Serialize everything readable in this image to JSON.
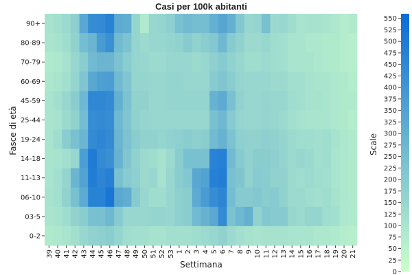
{
  "chart_data": {
    "type": "heatmap",
    "title": "Casi per 100k abitanti",
    "xlabel": "Settimana",
    "ylabel": "Fasce di età",
    "colorbar_label": "Scale",
    "colorbar_range": [
      0,
      560
    ],
    "colorbar_ticks": [
      0,
      25,
      50,
      75,
      100,
      125,
      150,
      175,
      200,
      225,
      250,
      275,
      300,
      325,
      350,
      375,
      400,
      425,
      450,
      475,
      500,
      525,
      550
    ],
    "color_low": "#ccffcc",
    "color_high": "#0a6bd6",
    "x_categories": [
      "39",
      "40",
      "41",
      "42",
      "43",
      "44",
      "45",
      "46",
      "47",
      "48",
      "49",
      "50",
      "51",
      "52",
      "53",
      "1",
      "2",
      "3",
      "4",
      "5",
      "6",
      "7",
      "8",
      "9",
      "10",
      "11",
      "12",
      "13",
      "14",
      "15",
      "16",
      "17",
      "18",
      "19",
      "20",
      "21"
    ],
    "y_categories": [
      "90+",
      "80-89",
      "70-79",
      "60-69",
      "45-59",
      "25-44",
      "19-24",
      "14-18",
      "11-13",
      "06-10",
      "03-5",
      "0-2"
    ],
    "values": [
      [
        110,
        120,
        140,
        180,
        330,
        430,
        440,
        470,
        320,
        310,
        160,
        80,
        150,
        160,
        180,
        240,
        260,
        250,
        250,
        300,
        340,
        300,
        210,
        150,
        160,
        240,
        140,
        150,
        130,
        100,
        110,
        110,
        100,
        90,
        70,
        80
      ],
      [
        100,
        110,
        130,
        170,
        250,
        280,
        380,
        420,
        260,
        230,
        160,
        140,
        150,
        150,
        160,
        170,
        200,
        170,
        190,
        210,
        270,
        200,
        170,
        140,
        140,
        150,
        130,
        120,
        100,
        100,
        90,
        90,
        80,
        80,
        70,
        60
      ],
      [
        80,
        90,
        110,
        150,
        190,
        260,
        280,
        280,
        230,
        190,
        160,
        150,
        140,
        140,
        150,
        150,
        150,
        140,
        150,
        180,
        200,
        170,
        150,
        130,
        130,
        140,
        130,
        120,
        100,
        100,
        100,
        90,
        80,
        80,
        70,
        60
      ],
      [
        90,
        100,
        120,
        160,
        220,
        330,
        360,
        370,
        260,
        220,
        160,
        160,
        150,
        150,
        160,
        160,
        150,
        150,
        150,
        200,
        220,
        190,
        160,
        150,
        150,
        150,
        140,
        140,
        120,
        120,
        110,
        100,
        100,
        90,
        80,
        70
      ],
      [
        100,
        120,
        150,
        190,
        270,
        450,
        450,
        440,
        300,
        230,
        170,
        170,
        150,
        150,
        160,
        160,
        160,
        160,
        160,
        290,
        320,
        240,
        170,
        150,
        150,
        160,
        150,
        150,
        130,
        120,
        110,
        110,
        100,
        90,
        80,
        80
      ],
      [
        100,
        110,
        140,
        170,
        250,
        430,
        440,
        430,
        270,
        220,
        170,
        160,
        150,
        150,
        150,
        150,
        150,
        150,
        150,
        240,
        270,
        200,
        160,
        150,
        150,
        160,
        150,
        140,
        120,
        110,
        100,
        100,
        100,
        90,
        80,
        70
      ],
      [
        100,
        130,
        190,
        240,
        280,
        440,
        460,
        440,
        280,
        230,
        190,
        170,
        170,
        160,
        170,
        180,
        190,
        180,
        190,
        260,
        290,
        230,
        180,
        170,
        170,
        180,
        170,
        160,
        140,
        130,
        130,
        120,
        130,
        110,
        90,
        80
      ],
      [
        100,
        110,
        120,
        150,
        370,
        500,
        440,
        420,
        290,
        220,
        170,
        140,
        130,
        110,
        140,
        190,
        240,
        240,
        240,
        470,
        480,
        260,
        200,
        170,
        190,
        190,
        180,
        160,
        140,
        150,
        140,
        120,
        130,
        100,
        90,
        80
      ],
      [
        100,
        120,
        160,
        280,
        350,
        490,
        460,
        480,
        240,
        200,
        180,
        140,
        150,
        110,
        150,
        190,
        210,
        330,
        350,
        480,
        490,
        240,
        220,
        170,
        200,
        190,
        170,
        170,
        140,
        130,
        140,
        130,
        120,
        100,
        90,
        80
      ],
      [
        110,
        120,
        170,
        240,
        320,
        470,
        470,
        520,
        330,
        310,
        200,
        150,
        130,
        130,
        150,
        180,
        190,
        320,
        380,
        430,
        460,
        250,
        200,
        200,
        210,
        190,
        200,
        170,
        140,
        140,
        130,
        120,
        130,
        110,
        90,
        80
      ],
      [
        100,
        110,
        130,
        170,
        190,
        240,
        240,
        270,
        200,
        150,
        150,
        150,
        160,
        160,
        150,
        180,
        190,
        260,
        290,
        330,
        440,
        230,
        270,
        300,
        170,
        210,
        200,
        200,
        150,
        140,
        160,
        160,
        130,
        120,
        90,
        80
      ],
      [
        80,
        90,
        100,
        120,
        150,
        170,
        180,
        190,
        160,
        130,
        120,
        120,
        110,
        110,
        120,
        120,
        120,
        130,
        140,
        150,
        170,
        140,
        120,
        110,
        100,
        110,
        110,
        110,
        100,
        100,
        100,
        90,
        90,
        80,
        70,
        60
      ]
    ]
  }
}
